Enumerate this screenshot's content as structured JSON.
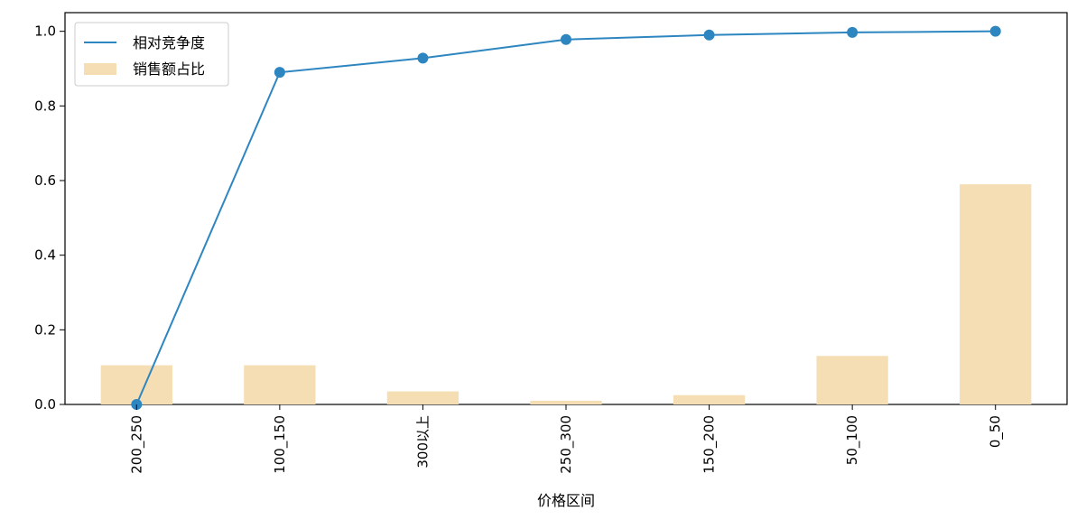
{
  "chart_data": {
    "type": "bar+line",
    "xlabel": "价格区间",
    "ylabel": "",
    "ylim": [
      0,
      1.05
    ],
    "yticks": [
      "0.0",
      "0.2",
      "0.4",
      "0.6",
      "0.8",
      "1.0"
    ],
    "ytick_values": [
      0.0,
      0.2,
      0.4,
      0.6,
      0.8,
      1.0
    ],
    "categories": [
      "200_250",
      "100_150",
      "300以上",
      "250_300",
      "150_200",
      "50_100",
      "0_50"
    ],
    "series": [
      {
        "name": "相对竞争度",
        "kind": "line",
        "color": "#2e86c1",
        "values": [
          0.0,
          0.89,
          0.928,
          0.978,
          0.99,
          0.997,
          1.0
        ]
      },
      {
        "name": "销售额占比",
        "kind": "bar",
        "color": "#f5deb3",
        "values": [
          0.105,
          0.105,
          0.035,
          0.01,
          0.025,
          0.13,
          0.59
        ]
      }
    ],
    "legend_position": "top-left"
  }
}
